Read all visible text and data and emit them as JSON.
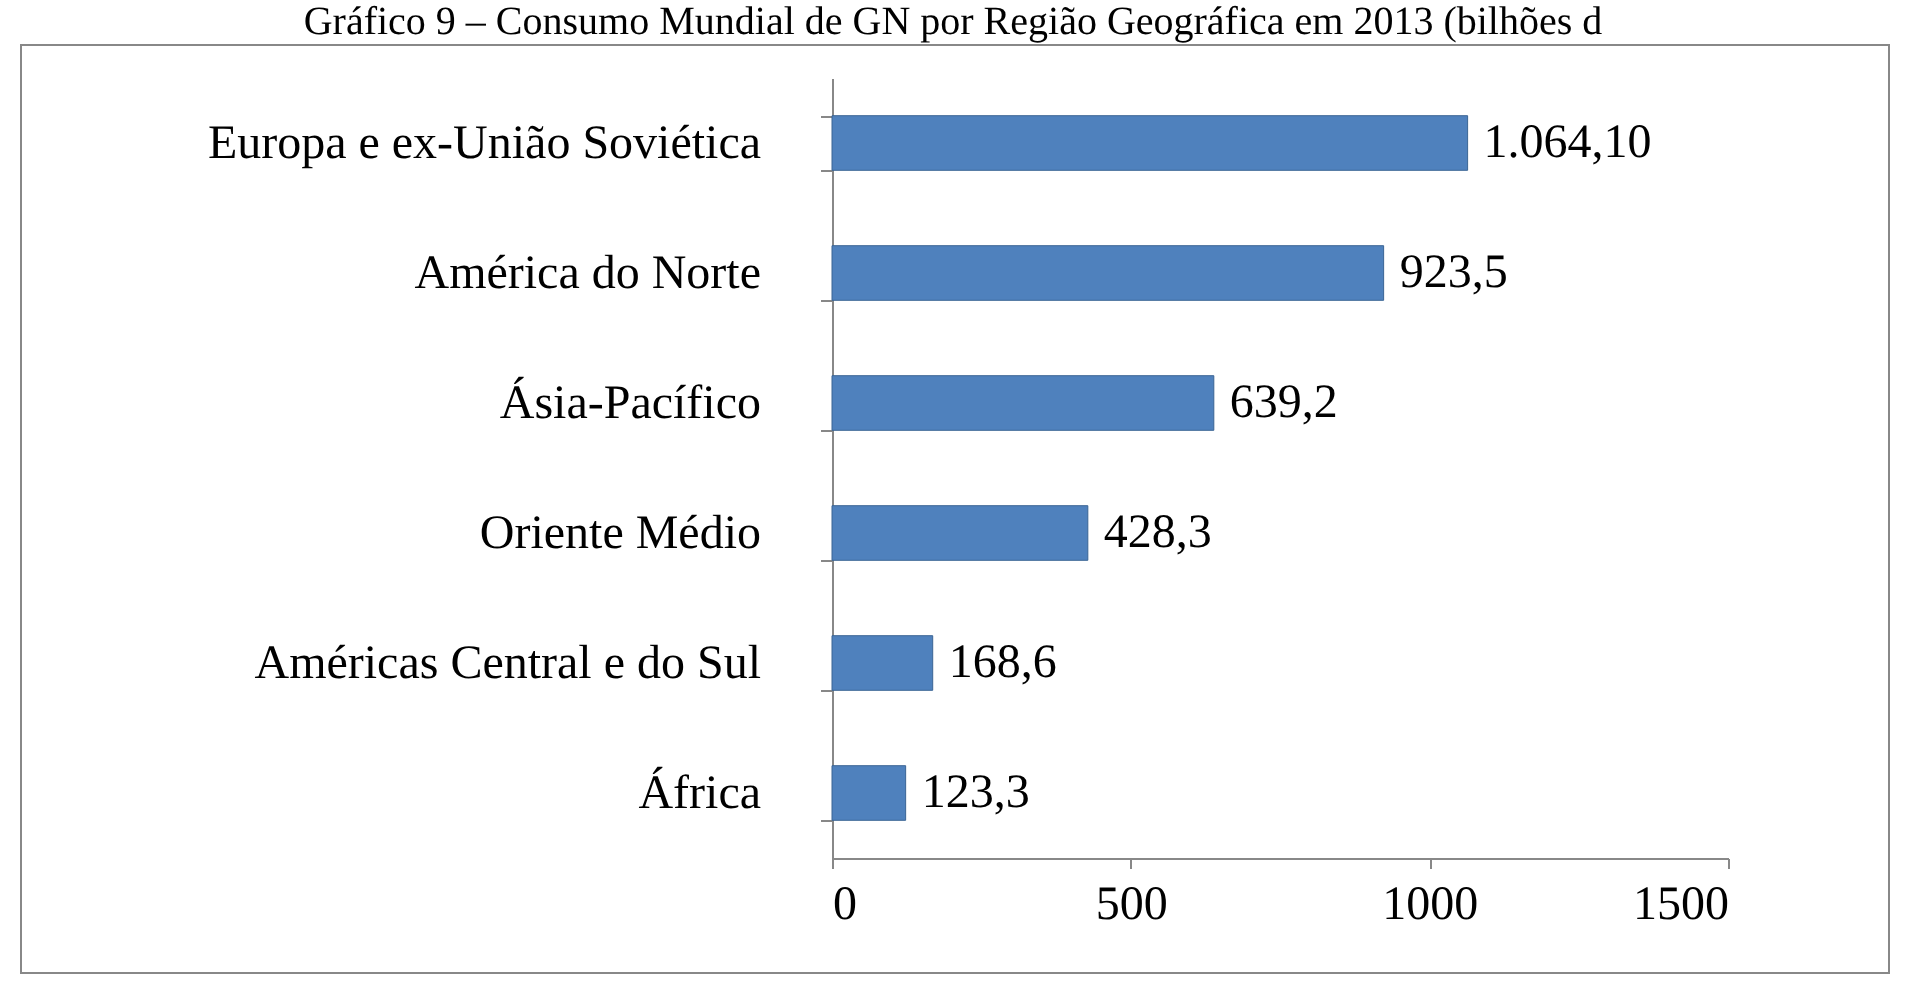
{
  "chart_data": {
    "type": "bar",
    "orientation": "horizontal",
    "title": "Gráfico 9 – Consumo Mundial de GN por Região Geográfica em 2013 (bilhões d",
    "categories": [
      "Europa e ex-União Soviética",
      "América do Norte",
      "Ásia-Pacífico",
      "Oriente Médio",
      "Américas Central e do Sul",
      "África"
    ],
    "values": [
      1064.1,
      923.5,
      639.2,
      428.3,
      168.6,
      123.3
    ],
    "value_labels": [
      "1.064,10",
      "923,5",
      "639,2",
      "428,3",
      "168,6",
      "123,3"
    ],
    "color": "#4f81bd",
    "xlim": [
      0,
      1500
    ],
    "xticks": [
      0,
      500,
      1000,
      1500
    ],
    "grid": false
  }
}
